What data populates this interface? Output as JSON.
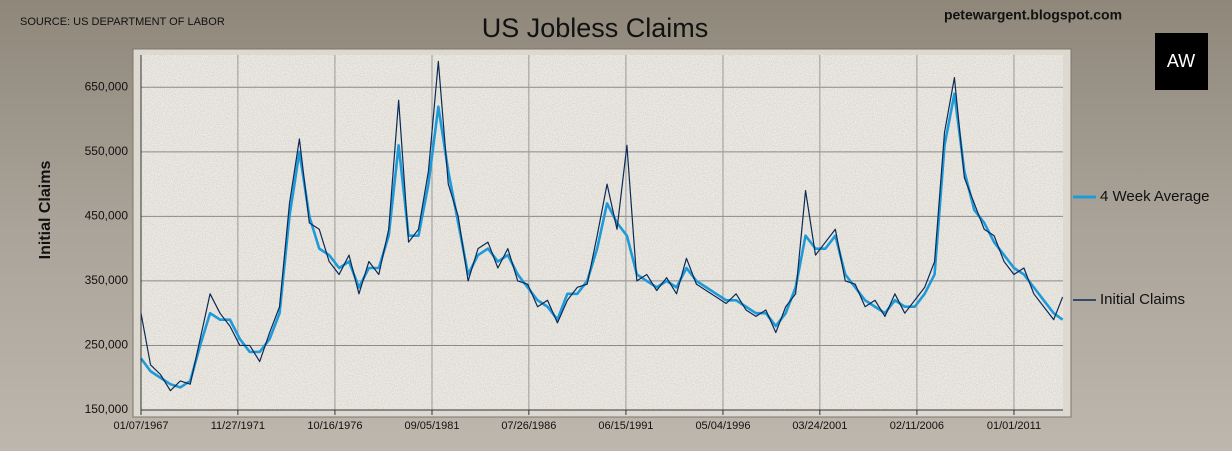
{
  "chart_data": {
    "type": "line",
    "title": "US Jobless Claims",
    "source": "SOURCE: US DEPARTMENT OF LABOR",
    "site": "petewargent.blogspot.com",
    "logo": "AW",
    "y_label": "Initial Claims",
    "grid": true,
    "legend": "right",
    "x": [
      1967.02,
      1967.5,
      1968.0,
      1968.5,
      1969.0,
      1969.5,
      1970.0,
      1970.5,
      1971.0,
      1971.5,
      1972.0,
      1972.5,
      1973.0,
      1973.5,
      1974.0,
      1974.5,
      1975.0,
      1975.5,
      1976.0,
      1976.5,
      1977.0,
      1977.5,
      1978.0,
      1978.5,
      1979.0,
      1979.5,
      1980.0,
      1980.5,
      1981.0,
      1981.5,
      1982.0,
      1982.5,
      1983.0,
      1983.5,
      1984.0,
      1984.5,
      1985.0,
      1985.5,
      1986.0,
      1986.5,
      1987.0,
      1987.5,
      1988.0,
      1988.5,
      1989.0,
      1989.5,
      1990.0,
      1990.5,
      1991.0,
      1991.5,
      1992.0,
      1992.5,
      1993.0,
      1993.5,
      1994.0,
      1994.5,
      1995.0,
      1995.5,
      1996.0,
      1996.5,
      1997.0,
      1997.5,
      1998.0,
      1998.5,
      1999.0,
      1999.5,
      2000.0,
      2000.5,
      2001.0,
      2001.5,
      2002.0,
      2002.5,
      2003.0,
      2003.5,
      2004.0,
      2004.5,
      2005.0,
      2005.5,
      2006.0,
      2006.5,
      2007.0,
      2007.5,
      2008.0,
      2008.5,
      2009.0,
      2009.5,
      2010.0,
      2010.5,
      2011.0,
      2011.5,
      2012.0,
      2012.5,
      2013.0,
      2013.45
    ],
    "series": [
      {
        "name": "4 Week Average",
        "color": "#1f9ad8",
        "values": [
          230000,
          210000,
          200000,
          190000,
          185000,
          195000,
          250000,
          300000,
          290000,
          290000,
          260000,
          240000,
          240000,
          260000,
          300000,
          450000,
          550000,
          450000,
          400000,
          390000,
          370000,
          380000,
          340000,
          370000,
          370000,
          420000,
          560000,
          420000,
          420000,
          500000,
          620000,
          520000,
          440000,
          360000,
          390000,
          400000,
          380000,
          390000,
          360000,
          340000,
          320000,
          310000,
          290000,
          330000,
          330000,
          350000,
          400000,
          470000,
          440000,
          420000,
          360000,
          350000,
          340000,
          350000,
          340000,
          370000,
          350000,
          340000,
          330000,
          320000,
          320000,
          310000,
          300000,
          300000,
          280000,
          300000,
          340000,
          420000,
          400000,
          400000,
          420000,
          360000,
          340000,
          320000,
          310000,
          300000,
          320000,
          310000,
          310000,
          330000,
          360000,
          560000,
          640000,
          520000,
          460000,
          440000,
          410000,
          390000,
          370000,
          360000,
          340000,
          320000,
          300000,
          290000
        ]
      },
      {
        "name": "Initial Claims",
        "color": "#0b2a55",
        "values": [
          300000,
          220000,
          205000,
          180000,
          195000,
          190000,
          260000,
          330000,
          300000,
          280000,
          250000,
          250000,
          225000,
          270000,
          310000,
          470000,
          570000,
          440000,
          430000,
          380000,
          360000,
          390000,
          330000,
          380000,
          360000,
          430000,
          630000,
          410000,
          430000,
          520000,
          690000,
          500000,
          450000,
          350000,
          400000,
          410000,
          370000,
          400000,
          350000,
          345000,
          310000,
          320000,
          285000,
          320000,
          340000,
          345000,
          420000,
          500000,
          430000,
          560000,
          350000,
          360000,
          335000,
          355000,
          330000,
          385000,
          345000,
          335000,
          325000,
          315000,
          330000,
          305000,
          295000,
          305000,
          270000,
          310000,
          330000,
          490000,
          390000,
          410000,
          430000,
          350000,
          345000,
          310000,
          320000,
          295000,
          330000,
          300000,
          320000,
          340000,
          380000,
          580000,
          665000,
          510000,
          470000,
          430000,
          420000,
          380000,
          360000,
          370000,
          330000,
          310000,
          290000,
          325000
        ]
      }
    ],
    "xlim": [
      1967.02,
      2013.47
    ],
    "xticks": [
      {
        "value": 1967.02,
        "label": "01/07/1967"
      },
      {
        "value": 1971.9,
        "label": "11/27/1971"
      },
      {
        "value": 1976.79,
        "label": "10/16/1976"
      },
      {
        "value": 1981.68,
        "label": "09/05/1981"
      },
      {
        "value": 1986.56,
        "label": "07/26/1986"
      },
      {
        "value": 1991.45,
        "label": "06/15/1991"
      },
      {
        "value": 1996.34,
        "label": "05/04/1996"
      },
      {
        "value": 2001.22,
        "label": "03/24/2001"
      },
      {
        "value": 2006.11,
        "label": "02/11/2006"
      },
      {
        "value": 2011.0,
        "label": "01/01/2011"
      }
    ],
    "ylim": [
      150000,
      700000
    ],
    "yticks": [
      {
        "value": 150000,
        "label": "150,000"
      },
      {
        "value": 250000,
        "label": "250,000"
      },
      {
        "value": 350000,
        "label": "350,000"
      },
      {
        "value": 450000,
        "label": "450,000"
      },
      {
        "value": 550000,
        "label": "550,000"
      },
      {
        "value": 650000,
        "label": "650,000"
      }
    ]
  }
}
